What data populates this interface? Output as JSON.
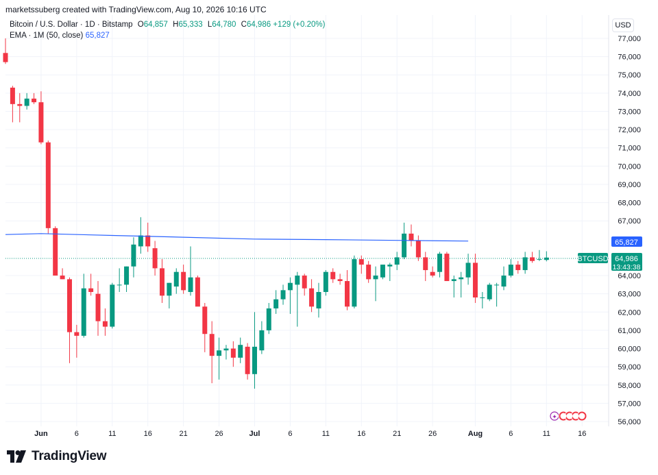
{
  "header": {
    "attribution": "marketssuberg created with TradingView.com, Aug 10, 2026 10:16 UTC"
  },
  "legend": {
    "symbol": "Bitcoin / U.S. Dollar · 1D · Bitstamp",
    "o_label": "O",
    "o_val": "64,857",
    "h_label": "H",
    "h_val": "65,333",
    "l_label": "L",
    "l_val": "64,780",
    "c_label": "C",
    "c_val": "64,986",
    "change": "+129 (+0.20%)",
    "ema_label": "EMA · 1M (50, close)",
    "ema_val": "65,827"
  },
  "currency": "USD",
  "price_tag": {
    "symbol": "BTCUSD",
    "price": "64,986",
    "countdown": "13:43:38"
  },
  "ema_tag": "65,827",
  "footer": {
    "brand": "TradingView"
  },
  "colors": {
    "up": "#089981",
    "down": "#f23645",
    "ema": "#2962ff",
    "text": "#131722",
    "grid": "#f0f3fa"
  },
  "chart_data": {
    "type": "candlestick",
    "title": "Bitcoin / U.S. Dollar · 1D · Bitstamp",
    "ylim": [
      55800,
      77600
    ],
    "y_ticks": [
      {
        "v": 56000,
        "label": "56,000"
      },
      {
        "v": 57000,
        "label": "57,000"
      },
      {
        "v": 58000,
        "label": "58,000"
      },
      {
        "v": 59000,
        "label": "59,000"
      },
      {
        "v": 60000,
        "label": "60,000"
      },
      {
        "v": 61000,
        "label": "61,000"
      },
      {
        "v": 62000,
        "label": "62,000"
      },
      {
        "v": 63000,
        "label": "63,000"
      },
      {
        "v": 64000,
        "label": "64,000"
      },
      {
        "v": 67000,
        "label": "67,000"
      },
      {
        "v": 68000,
        "label": "68,000"
      },
      {
        "v": 69000,
        "label": "69,000"
      },
      {
        "v": 70000,
        "label": "70,000"
      },
      {
        "v": 71000,
        "label": "71,000"
      },
      {
        "v": 72000,
        "label": "72,000"
      },
      {
        "v": 73000,
        "label": "73,000"
      },
      {
        "v": 74000,
        "label": "74,000"
      },
      {
        "v": 75000,
        "label": "75,000"
      },
      {
        "v": 76000,
        "label": "76,000"
      },
      {
        "v": 77000,
        "label": "77,000"
      }
    ],
    "x_ticks": [
      {
        "d": "2026-06-01",
        "label": "Jun"
      },
      {
        "d": "2026-06-06",
        "label": "6"
      },
      {
        "d": "2026-06-11",
        "label": "11"
      },
      {
        "d": "2026-06-16",
        "label": "16"
      },
      {
        "d": "2026-06-21",
        "label": "21"
      },
      {
        "d": "2026-06-26",
        "label": "26"
      },
      {
        "d": "2026-07-01",
        "label": "Jul"
      },
      {
        "d": "2026-07-06",
        "label": "6"
      },
      {
        "d": "2026-07-11",
        "label": "11"
      },
      {
        "d": "2026-07-16",
        "label": "16"
      },
      {
        "d": "2026-07-21",
        "label": "21"
      },
      {
        "d": "2026-07-26",
        "label": "26"
      },
      {
        "d": "2026-08-01",
        "label": "Aug"
      },
      {
        "d": "2026-08-06",
        "label": "6"
      },
      {
        "d": "2026-08-11",
        "label": "11"
      },
      {
        "d": "2026-08-16",
        "label": "16"
      }
    ],
    "x_range": [
      "2026-05-27",
      "2026-08-18"
    ],
    "candles": [
      {
        "d": "2026-05-27",
        "o": 76200,
        "h": 77000,
        "l": 75600,
        "c": 75700
      },
      {
        "d": "2026-05-28",
        "o": 74300,
        "h": 74400,
        "l": 72400,
        "c": 73400
      },
      {
        "d": "2026-05-29",
        "o": 73400,
        "h": 74000,
        "l": 72400,
        "c": 73300
      },
      {
        "d": "2026-05-30",
        "o": 73300,
        "h": 74000,
        "l": 73100,
        "c": 73700
      },
      {
        "d": "2026-05-31",
        "o": 73700,
        "h": 74000,
        "l": 73400,
        "c": 73500
      },
      {
        "d": "2026-06-01",
        "o": 73500,
        "h": 74100,
        "l": 71200,
        "c": 71300
      },
      {
        "d": "2026-06-02",
        "o": 71300,
        "h": 71400,
        "l": 66300,
        "c": 66600
      },
      {
        "d": "2026-06-03",
        "o": 66600,
        "h": 66700,
        "l": 64000,
        "c": 64000
      },
      {
        "d": "2026-06-04",
        "o": 64000,
        "h": 64400,
        "l": 63800,
        "c": 63800
      },
      {
        "d": "2026-06-05",
        "o": 63800,
        "h": 63900,
        "l": 59200,
        "c": 60900
      },
      {
        "d": "2026-06-06",
        "o": 60900,
        "h": 61300,
        "l": 59500,
        "c": 60700
      },
      {
        "d": "2026-06-07",
        "o": 60700,
        "h": 64100,
        "l": 60600,
        "c": 63300
      },
      {
        "d": "2026-06-08",
        "o": 63300,
        "h": 64100,
        "l": 62900,
        "c": 63100
      },
      {
        "d": "2026-06-09",
        "o": 63000,
        "h": 63700,
        "l": 60700,
        "c": 61500
      },
      {
        "d": "2026-06-10",
        "o": 61500,
        "h": 62200,
        "l": 60700,
        "c": 61200
      },
      {
        "d": "2026-06-11",
        "o": 61200,
        "h": 63600,
        "l": 61100,
        "c": 63500
      },
      {
        "d": "2026-06-12",
        "o": 63500,
        "h": 64400,
        "l": 63100,
        "c": 63500
      },
      {
        "d": "2026-06-13",
        "o": 63500,
        "h": 64500,
        "l": 63100,
        "c": 64500
      },
      {
        "d": "2026-06-14",
        "o": 64500,
        "h": 66100,
        "l": 63900,
        "c": 65700
      },
      {
        "d": "2026-06-15",
        "o": 65600,
        "h": 67200,
        "l": 65200,
        "c": 66200
      },
      {
        "d": "2026-06-16",
        "o": 66200,
        "h": 66900,
        "l": 65300,
        "c": 65600
      },
      {
        "d": "2026-06-17",
        "o": 65500,
        "h": 65900,
        "l": 64000,
        "c": 64400
      },
      {
        "d": "2026-06-18",
        "o": 64400,
        "h": 64900,
        "l": 62500,
        "c": 62900
      },
      {
        "d": "2026-06-19",
        "o": 62900,
        "h": 63600,
        "l": 62200,
        "c": 63600
      },
      {
        "d": "2026-06-20",
        "o": 63400,
        "h": 64400,
        "l": 63000,
        "c": 64200
      },
      {
        "d": "2026-06-21",
        "o": 64200,
        "h": 64600,
        "l": 63000,
        "c": 63200
      },
      {
        "d": "2026-06-22",
        "o": 63100,
        "h": 65600,
        "l": 62900,
        "c": 63900
      },
      {
        "d": "2026-06-23",
        "o": 63900,
        "h": 64000,
        "l": 62400,
        "c": 62300
      },
      {
        "d": "2026-06-24",
        "o": 62300,
        "h": 62500,
        "l": 59800,
        "c": 60800
      },
      {
        "d": "2026-06-25",
        "o": 60800,
        "h": 61500,
        "l": 58100,
        "c": 59600
      },
      {
        "d": "2026-06-26",
        "o": 59600,
        "h": 60600,
        "l": 58300,
        "c": 59900
      },
      {
        "d": "2026-06-27",
        "o": 59900,
        "h": 60200,
        "l": 59400,
        "c": 60000
      },
      {
        "d": "2026-06-28",
        "o": 60000,
        "h": 60400,
        "l": 59000,
        "c": 59500
      },
      {
        "d": "2026-06-29",
        "o": 59500,
        "h": 60600,
        "l": 59200,
        "c": 60200
      },
      {
        "d": "2026-06-30",
        "o": 60100,
        "h": 60300,
        "l": 58300,
        "c": 58600
      },
      {
        "d": "2026-07-01",
        "o": 58600,
        "h": 62000,
        "l": 57800,
        "c": 60100
      },
      {
        "d": "2026-07-02",
        "o": 59900,
        "h": 61500,
        "l": 59700,
        "c": 61000
      },
      {
        "d": "2026-07-03",
        "o": 61000,
        "h": 62500,
        "l": 60800,
        "c": 62200
      },
      {
        "d": "2026-07-04",
        "o": 62200,
        "h": 63200,
        "l": 61900,
        "c": 62700
      },
      {
        "d": "2026-07-05",
        "o": 62700,
        "h": 63500,
        "l": 62400,
        "c": 63200
      },
      {
        "d": "2026-07-06",
        "o": 63200,
        "h": 63900,
        "l": 61900,
        "c": 63600
      },
      {
        "d": "2026-07-07",
        "o": 63500,
        "h": 64200,
        "l": 61200,
        "c": 64000
      },
      {
        "d": "2026-07-08",
        "o": 64000,
        "h": 64100,
        "l": 62900,
        "c": 63300
      },
      {
        "d": "2026-07-09",
        "o": 63300,
        "h": 63800,
        "l": 62000,
        "c": 62300
      },
      {
        "d": "2026-07-10",
        "o": 62200,
        "h": 63600,
        "l": 61700,
        "c": 63100
      },
      {
        "d": "2026-07-11",
        "o": 63100,
        "h": 64300,
        "l": 62900,
        "c": 64200
      },
      {
        "d": "2026-07-12",
        "o": 64200,
        "h": 64400,
        "l": 63600,
        "c": 63800
      },
      {
        "d": "2026-07-13",
        "o": 63800,
        "h": 64100,
        "l": 63500,
        "c": 63700
      },
      {
        "d": "2026-07-14",
        "o": 63700,
        "h": 64300,
        "l": 62100,
        "c": 62300
      },
      {
        "d": "2026-07-15",
        "o": 62300,
        "h": 65100,
        "l": 62200,
        "c": 64900
      },
      {
        "d": "2026-07-16",
        "o": 64900,
        "h": 65100,
        "l": 64100,
        "c": 64600
      },
      {
        "d": "2026-07-17",
        "o": 64600,
        "h": 64800,
        "l": 63600,
        "c": 63800
      },
      {
        "d": "2026-07-18",
        "o": 63800,
        "h": 64500,
        "l": 62600,
        "c": 64000
      },
      {
        "d": "2026-07-19",
        "o": 63900,
        "h": 64600,
        "l": 63800,
        "c": 64600
      },
      {
        "d": "2026-07-20",
        "o": 64500,
        "h": 64700,
        "l": 63700,
        "c": 64600
      },
      {
        "d": "2026-07-21",
        "o": 64600,
        "h": 65300,
        "l": 64300,
        "c": 65000
      },
      {
        "d": "2026-07-22",
        "o": 65000,
        "h": 66900,
        "l": 64900,
        "c": 66300
      },
      {
        "d": "2026-07-23",
        "o": 66300,
        "h": 66800,
        "l": 65600,
        "c": 65900
      },
      {
        "d": "2026-07-24",
        "o": 65900,
        "h": 66200,
        "l": 64800,
        "c": 65000
      },
      {
        "d": "2026-07-25",
        "o": 65000,
        "h": 65300,
        "l": 63700,
        "c": 64300
      },
      {
        "d": "2026-07-26",
        "o": 64200,
        "h": 64500,
        "l": 63900,
        "c": 64000
      },
      {
        "d": "2026-07-27",
        "o": 64200,
        "h": 65300,
        "l": 63900,
        "c": 65200
      },
      {
        "d": "2026-07-28",
        "o": 65200,
        "h": 65300,
        "l": 63700,
        "c": 63700
      },
      {
        "d": "2026-07-29",
        "o": 63700,
        "h": 64000,
        "l": 62800,
        "c": 63800
      },
      {
        "d": "2026-07-30",
        "o": 63800,
        "h": 64200,
        "l": 62800,
        "c": 63900
      },
      {
        "d": "2026-07-31",
        "o": 63900,
        "h": 65200,
        "l": 63500,
        "c": 64700
      },
      {
        "d": "2026-08-01",
        "o": 64700,
        "h": 65200,
        "l": 62500,
        "c": 62800
      },
      {
        "d": "2026-08-02",
        "o": 62800,
        "h": 63100,
        "l": 62200,
        "c": 62800
      },
      {
        "d": "2026-08-03",
        "o": 62700,
        "h": 63600,
        "l": 62600,
        "c": 63500
      },
      {
        "d": "2026-08-04",
        "o": 63500,
        "h": 63600,
        "l": 62300,
        "c": 63500
      },
      {
        "d": "2026-08-05",
        "o": 63400,
        "h": 64500,
        "l": 63200,
        "c": 64000
      },
      {
        "d": "2026-08-06",
        "o": 64000,
        "h": 64900,
        "l": 63900,
        "c": 64600
      },
      {
        "d": "2026-08-07",
        "o": 64600,
        "h": 64800,
        "l": 64100,
        "c": 64300
      },
      {
        "d": "2026-08-08",
        "o": 64300,
        "h": 65300,
        "l": 64100,
        "c": 65000
      },
      {
        "d": "2026-08-09",
        "o": 65000,
        "h": 65300,
        "l": 64700,
        "c": 64800
      },
      {
        "d": "2026-08-10",
        "o": 64900,
        "h": 65400,
        "l": 64800,
        "c": 64900
      },
      {
        "d": "2026-08-11",
        "o": 64857,
        "h": 65333,
        "l": 64780,
        "c": 64986
      }
    ],
    "ema_series": [
      {
        "d": "2026-05-27",
        "v": 66250
      },
      {
        "d": "2026-06-01",
        "v": 66300
      },
      {
        "d": "2026-06-11",
        "v": 66200
      },
      {
        "d": "2026-06-21",
        "v": 66100
      },
      {
        "d": "2026-07-01",
        "v": 66000
      },
      {
        "d": "2026-07-11",
        "v": 65970
      },
      {
        "d": "2026-07-21",
        "v": 65930
      },
      {
        "d": "2026-07-31",
        "v": 65890
      }
    ]
  }
}
